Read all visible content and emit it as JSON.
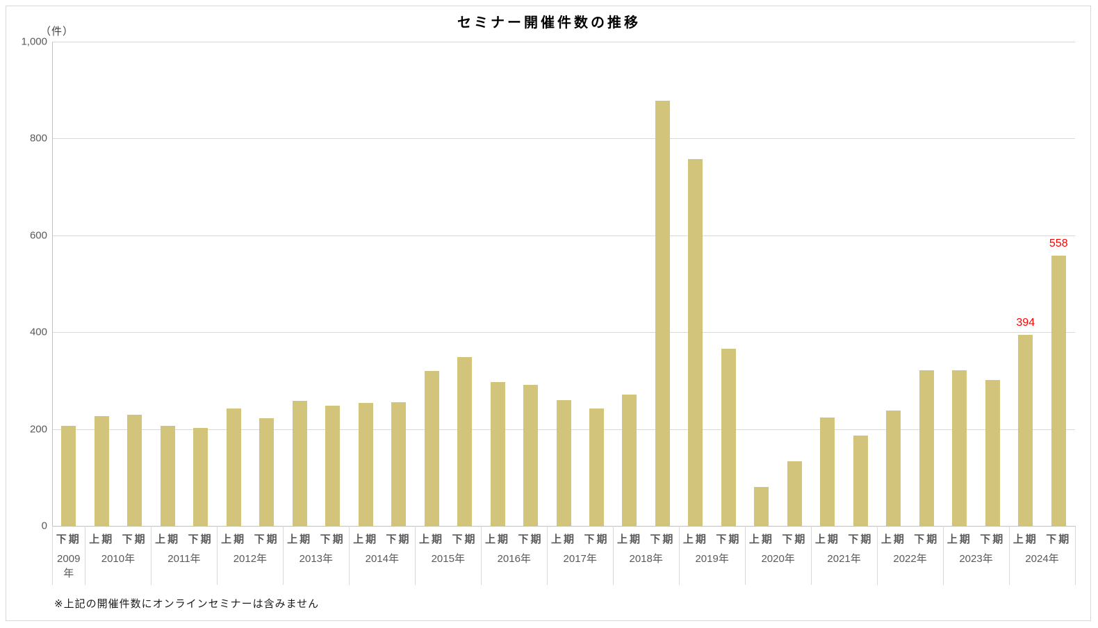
{
  "note": "※上記の開催件数にオンラインセミナーは含みません",
  "colors": {
    "bar": "#d2c47a",
    "data_label": "#ff0000",
    "gridline": "#d9d9d9",
    "axis_line": "#bfbfbf",
    "tick_label": "#595959",
    "category_label": "#595959",
    "title": "#000000",
    "note_text": "#1a1a1a",
    "border": "#d7d7d7"
  },
  "chart_data": {
    "type": "bar",
    "title": "セミナー開催件数の推移",
    "ylabel": "（件）",
    "xlabel": "",
    "ylim": [
      0,
      1000
    ],
    "yticks": [
      0,
      200,
      400,
      600,
      800,
      1000
    ],
    "ytick_labels": [
      "0",
      "200",
      "400",
      "600",
      "800",
      "1,000"
    ],
    "grid": true,
    "legend": "none",
    "categories": [
      "2009年 下期",
      "2010年 上期",
      "2010年 下期",
      "2011年 上期",
      "2011年 下期",
      "2012年 上期",
      "2012年 下期",
      "2013年 上期",
      "2013年 下期",
      "2014年 上期",
      "2014年 下期",
      "2015年 上期",
      "2015年 下期",
      "2016年 上期",
      "2016年 下期",
      "2017年 上期",
      "2017年 下期",
      "2018年 上期",
      "2018年 下期",
      "2019年 上期",
      "2019年 下期",
      "2020年 上期",
      "2020年 下期",
      "2021年 上期",
      "2021年 下期",
      "2022年 上期",
      "2022年 下期",
      "2023年 上期",
      "2023年 下期",
      "2024年 上期",
      "2024年 下期"
    ],
    "values": [
      206,
      227,
      229,
      207,
      202,
      243,
      222,
      258,
      248,
      254,
      256,
      320,
      348,
      297,
      291,
      260,
      242,
      271,
      878,
      757,
      366,
      81,
      134,
      224,
      187,
      238,
      322,
      322,
      302,
      394,
      558
    ],
    "groups": [
      {
        "year": "2009年",
        "year_key": "2009",
        "halves": [
          {
            "label": "下期",
            "key": "h2",
            "value": 206
          }
        ]
      },
      {
        "year": "2010年",
        "year_key": "2010",
        "halves": [
          {
            "label": "上期",
            "key": "h1",
            "value": 227
          },
          {
            "label": "下期",
            "key": "h2",
            "value": 229
          }
        ]
      },
      {
        "year": "2011年",
        "year_key": "2011",
        "halves": [
          {
            "label": "上期",
            "key": "h1",
            "value": 207
          },
          {
            "label": "下期",
            "key": "h2",
            "value": 202
          }
        ]
      },
      {
        "year": "2012年",
        "year_key": "2012",
        "halves": [
          {
            "label": "上期",
            "key": "h1",
            "value": 243
          },
          {
            "label": "下期",
            "key": "h2",
            "value": 222
          }
        ]
      },
      {
        "year": "2013年",
        "year_key": "2013",
        "halves": [
          {
            "label": "上期",
            "key": "h1",
            "value": 258
          },
          {
            "label": "下期",
            "key": "h2",
            "value": 248
          }
        ]
      },
      {
        "year": "2014年",
        "year_key": "2014",
        "halves": [
          {
            "label": "上期",
            "key": "h1",
            "value": 254
          },
          {
            "label": "下期",
            "key": "h2",
            "value": 256
          }
        ]
      },
      {
        "year": "2015年",
        "year_key": "2015",
        "halves": [
          {
            "label": "上期",
            "key": "h1",
            "value": 320
          },
          {
            "label": "下期",
            "key": "h2",
            "value": 348
          }
        ]
      },
      {
        "year": "2016年",
        "year_key": "2016",
        "halves": [
          {
            "label": "上期",
            "key": "h1",
            "value": 297
          },
          {
            "label": "下期",
            "key": "h2",
            "value": 291
          }
        ]
      },
      {
        "year": "2017年",
        "year_key": "2017",
        "halves": [
          {
            "label": "上期",
            "key": "h1",
            "value": 260
          },
          {
            "label": "下期",
            "key": "h2",
            "value": 242
          }
        ]
      },
      {
        "year": "2018年",
        "year_key": "2018",
        "halves": [
          {
            "label": "上期",
            "key": "h1",
            "value": 271
          },
          {
            "label": "下期",
            "key": "h2",
            "value": 878
          }
        ]
      },
      {
        "year": "2019年",
        "year_key": "2019",
        "halves": [
          {
            "label": "上期",
            "key": "h1",
            "value": 757
          },
          {
            "label": "下期",
            "key": "h2",
            "value": 366
          }
        ]
      },
      {
        "year": "2020年",
        "year_key": "2020",
        "halves": [
          {
            "label": "上期",
            "key": "h1",
            "value": 81
          },
          {
            "label": "下期",
            "key": "h2",
            "value": 134
          }
        ]
      },
      {
        "year": "2021年",
        "year_key": "2021",
        "halves": [
          {
            "label": "上期",
            "key": "h1",
            "value": 224
          },
          {
            "label": "下期",
            "key": "h2",
            "value": 187
          }
        ]
      },
      {
        "year": "2022年",
        "year_key": "2022",
        "halves": [
          {
            "label": "上期",
            "key": "h1",
            "value": 238
          },
          {
            "label": "下期",
            "key": "h2",
            "value": 322
          }
        ]
      },
      {
        "year": "2023年",
        "year_key": "2023",
        "halves": [
          {
            "label": "上期",
            "key": "h1",
            "value": 322
          },
          {
            "label": "下期",
            "key": "h2",
            "value": 302
          }
        ]
      },
      {
        "year": "2024年",
        "year_key": "2024",
        "halves": [
          {
            "label": "上期",
            "key": "h1",
            "value": 394,
            "show_value_label": true
          },
          {
            "label": "下期",
            "key": "h2",
            "value": 558,
            "show_value_label": true
          }
        ]
      }
    ],
    "data_labels_shown": [
      {
        "category": "2024年 上期",
        "text": "394"
      },
      {
        "category": "2024年 下期",
        "text": "558"
      }
    ]
  }
}
